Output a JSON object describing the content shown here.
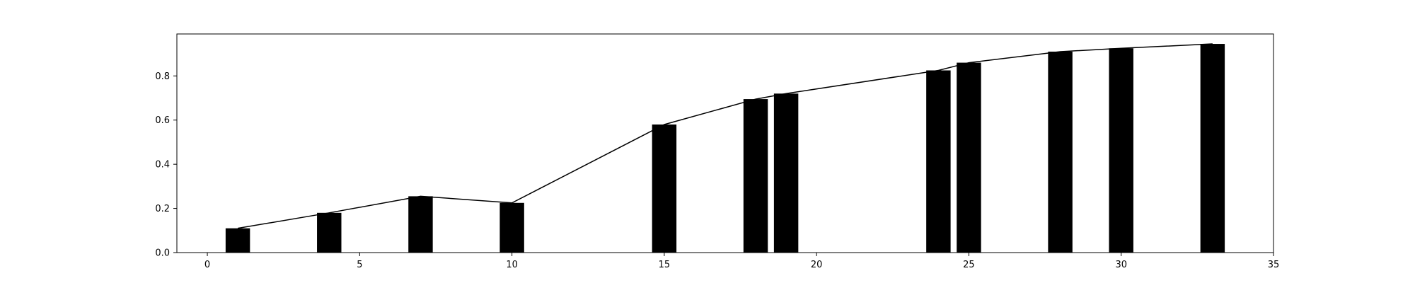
{
  "chart_data": {
    "type": "bar",
    "xlim": [
      -1,
      35
    ],
    "ylim": [
      0,
      0.99
    ],
    "xticks": [
      0,
      5,
      10,
      15,
      20,
      25,
      30,
      35
    ],
    "yticks": [
      0.0,
      0.2,
      0.4,
      0.6,
      0.8
    ],
    "bar_width": 0.8,
    "bars": {
      "x": [
        1,
        4,
        7,
        10,
        15,
        18,
        19,
        24,
        25,
        28,
        30,
        33
      ],
      "values": [
        0.11,
        0.18,
        0.255,
        0.225,
        0.58,
        0.695,
        0.72,
        0.825,
        0.86,
        0.91,
        0.925,
        0.945
      ],
      "color": "#000000"
    },
    "line": {
      "x": [
        1,
        4,
        7,
        10,
        15,
        18,
        19,
        24,
        25,
        28,
        30,
        33
      ],
      "values": [
        0.11,
        0.18,
        0.255,
        0.225,
        0.58,
        0.695,
        0.72,
        0.825,
        0.86,
        0.91,
        0.925,
        0.945
      ],
      "color": "#000000"
    },
    "grid": false,
    "title": "",
    "xlabel": "",
    "ylabel": ""
  }
}
